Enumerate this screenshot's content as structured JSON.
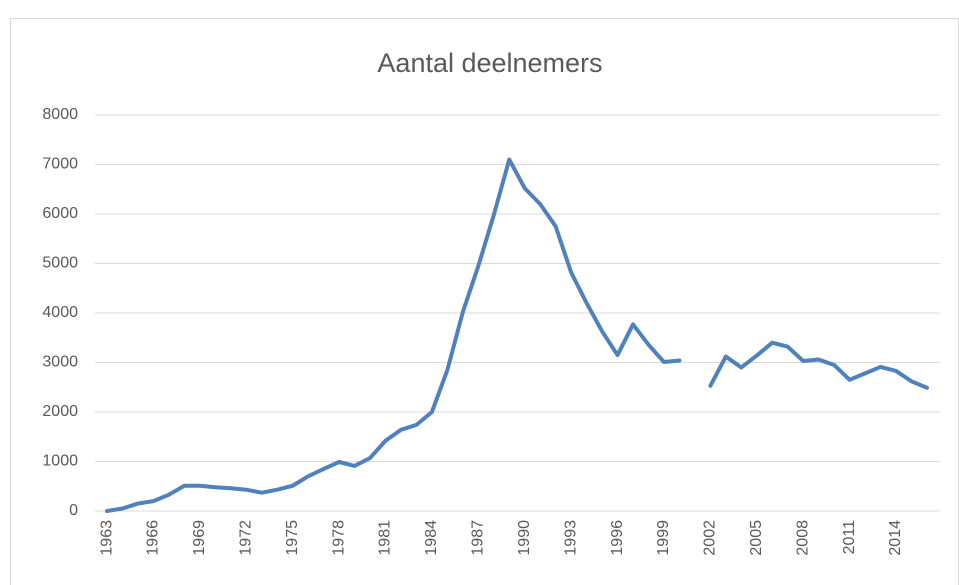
{
  "chart_data": {
    "type": "line",
    "title": "Aantal deelnemers",
    "categories": [
      "1963",
      null,
      null,
      "1966",
      null,
      null,
      "1969",
      null,
      null,
      "1972",
      null,
      null,
      "1975",
      null,
      null,
      "1978",
      null,
      null,
      "1981",
      null,
      null,
      "1984",
      null,
      null,
      "1987",
      null,
      null,
      "1990",
      null,
      null,
      "1993",
      null,
      null,
      "1996",
      null,
      null,
      "1999",
      null,
      null,
      "2002",
      null,
      null,
      "2005",
      null,
      null,
      "2008",
      null,
      null,
      "2011",
      null,
      null,
      "2014",
      null,
      null
    ],
    "values": [
      0,
      50,
      150,
      200,
      330,
      510,
      510,
      480,
      460,
      430,
      370,
      430,
      510,
      700,
      850,
      990,
      910,
      1070,
      1420,
      1640,
      1740,
      2000,
      2850,
      4020,
      4950,
      5980,
      7100,
      6520,
      6200,
      5750,
      4820,
      4200,
      3630,
      3150,
      3770,
      3360,
      3010,
      3040,
      null,
      2530,
      3120,
      2900,
      3140,
      3400,
      3320,
      3030,
      3060,
      2950,
      2650,
      2780,
      2910,
      2830,
      2620,
      2490
    ],
    "color": "#4f81bd",
    "ylim": [
      0,
      8000
    ],
    "yticks": [
      0,
      1000,
      2000,
      3000,
      4000,
      5000,
      6000,
      7000,
      8000
    ],
    "grid": true
  }
}
